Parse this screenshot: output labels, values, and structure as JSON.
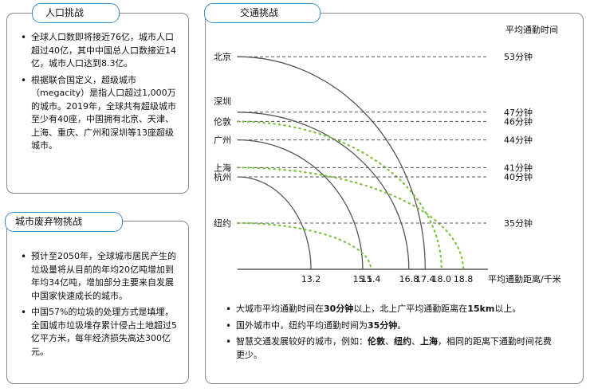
{
  "panel_population": {
    "title": "人口挑战",
    "bullets": [
      "全球人口数即将接近76亿，城市人口超过40亿，其中中国总人口数接近14亿，城市人口达到8.3亿。",
      "根据联合国定义，超级城市（megacity）是指人口超过1,000万的城市。2019年，全球共有超级城市至少有40座，中国拥有北京、天津、上海、重庆、广州和深圳等13座超级城市。"
    ]
  },
  "panel_waste": {
    "title": "城市废弃物挑战",
    "bullets": [
      "预计至2050年，全球城市居民产生的垃圾量将从目前的年均20亿吨增加到年均34亿吨，增加部分主要来自发展中国家快速成长的城市。",
      "中国57%的垃圾的处理方式是填埋，全国城市垃圾堆存累计侵占土地超过5亿平方米，每年经济损失高达300亿元。"
    ]
  },
  "panel_traffic": {
    "title": "交通挑战",
    "notes": [
      [
        {
          "t": "大城市平均通勤时间在"
        },
        {
          "t": "30分钟",
          "b": true
        },
        {
          "t": "以上，北上广平均通勤距离在"
        },
        {
          "t": "15km",
          "b": true
        },
        {
          "t": "以上。"
        }
      ],
      [
        {
          "t": "国外城市中，纽约平均通勤时间为"
        },
        {
          "t": "35分钟",
          "b": true
        },
        {
          "t": "。"
        }
      ],
      [
        {
          "t": "智慧交通发展较好的城市，例如："
        },
        {
          "t": "伦敦",
          "b": true
        },
        {
          "t": "、"
        },
        {
          "t": "纽约",
          "b": true
        },
        {
          "t": "、"
        },
        {
          "t": "上海",
          "b": true
        },
        {
          "t": "，相同的距离下通勤时间花费更少。"
        }
      ]
    ]
  },
  "chart_data": {
    "type": "line",
    "y_right_label": "平均通勤时间",
    "x_label": "平均通勤距离/千米",
    "x_ticks": [
      "13.2",
      "15.1",
      "15.4",
      "16.8",
      "17.4",
      "18.0",
      "18.8"
    ],
    "colors": {
      "domestic": "#555555",
      "foreign": "#7dc242",
      "grid": "#555555"
    },
    "series": [
      {
        "city": "北京",
        "time_label": "53分钟",
        "time": 53,
        "distance": 17.4,
        "group": "domestic"
      },
      {
        "city": "深圳",
        "time_label": "47分钟",
        "time": 47,
        "distance": 16.8,
        "group": "domestic"
      },
      {
        "city": "伦敦",
        "time_label": "46分钟",
        "time": 46,
        "distance": 18.0,
        "group": "foreign"
      },
      {
        "city": "广州",
        "time_label": "44分钟",
        "time": 44,
        "distance": 15.1,
        "group": "domestic"
      },
      {
        "city": "上海",
        "time_label": "41分钟",
        "time": 41,
        "distance": 18.8,
        "group": "foreign"
      },
      {
        "city": "杭州",
        "time_label": "40分钟",
        "time": 40,
        "distance": 13.2,
        "group": "domestic"
      },
      {
        "city": "纽约",
        "time_label": "35分钟",
        "time": 35,
        "distance": 15.4,
        "group": "foreign"
      }
    ]
  }
}
